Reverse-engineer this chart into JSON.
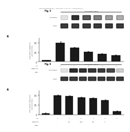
{
  "header_text": "Patent Application Publication   Aug. 28, 2014   Sheet 7 of 7   US 2014/0235600 A1",
  "panel1": {
    "fig_label": "Fig. 5",
    "panel_letter": "B.",
    "gel_label1": "iNOS mRNA",
    "gel_label2": "GAPDH",
    "gel_cols": 6,
    "gel_band_alphas_row1": [
      0.12,
      0.9,
      0.72,
      0.55,
      0.42,
      0.35
    ],
    "gel_band_alphas_row2": [
      0.85,
      0.85,
      0.85,
      0.85,
      0.85,
      0.85
    ],
    "bar_values": [
      0.08,
      1.0,
      0.72,
      0.52,
      0.42,
      0.35
    ],
    "bar_errors": [
      0.02,
      0.05,
      0.04,
      0.04,
      0.03,
      0.03
    ],
    "ylabel": "iNOS mRNA expression\n(fold of control)",
    "ylim": [
      0,
      1.25
    ],
    "yticks": [
      0,
      0.5,
      1.0
    ],
    "lps_row": [
      "-",
      "+",
      "+",
      "+",
      "+",
      "+"
    ],
    "comp_row": [
      "-",
      "-",
      "1",
      "2.5",
      "5",
      ""
    ],
    "conc_label": "Concentration (μg/mL)"
  },
  "panel2": {
    "fig_label": "Fig. 6",
    "panel_letter": "B.",
    "gel_label1": "COX-2 mRNA",
    "gel_label2": "GAPDH",
    "gel_cols": 7,
    "gel_band_alphas_row1": [
      0.12,
      0.92,
      0.9,
      0.87,
      0.84,
      0.78,
      0.2
    ],
    "gel_band_alphas_row2": [
      0.85,
      0.85,
      0.85,
      0.85,
      0.85,
      0.85,
      0.85
    ],
    "bar_values": [
      0.08,
      1.0,
      0.95,
      0.9,
      0.85,
      0.75,
      0.18
    ],
    "bar_errors": [
      0.02,
      0.05,
      0.04,
      0.04,
      0.04,
      0.04,
      0.02
    ],
    "ylabel": "COX-2 mRNA expression\n(fold of control)",
    "ylim": [
      0,
      1.25
    ],
    "yticks": [
      0,
      0.5,
      1.0
    ],
    "lps_row": [
      "-",
      "+",
      "+",
      "+",
      "+",
      "+",
      "+"
    ],
    "comp_row": [
      "-",
      "-",
      "0.1",
      "0.25",
      "0.5",
      "1",
      ""
    ],
    "conc_label": "Concentration (μg/mL)"
  },
  "bg_color": "#ffffff",
  "gel_bg": "#d0d0d0",
  "band_color": "#1a1a1a"
}
